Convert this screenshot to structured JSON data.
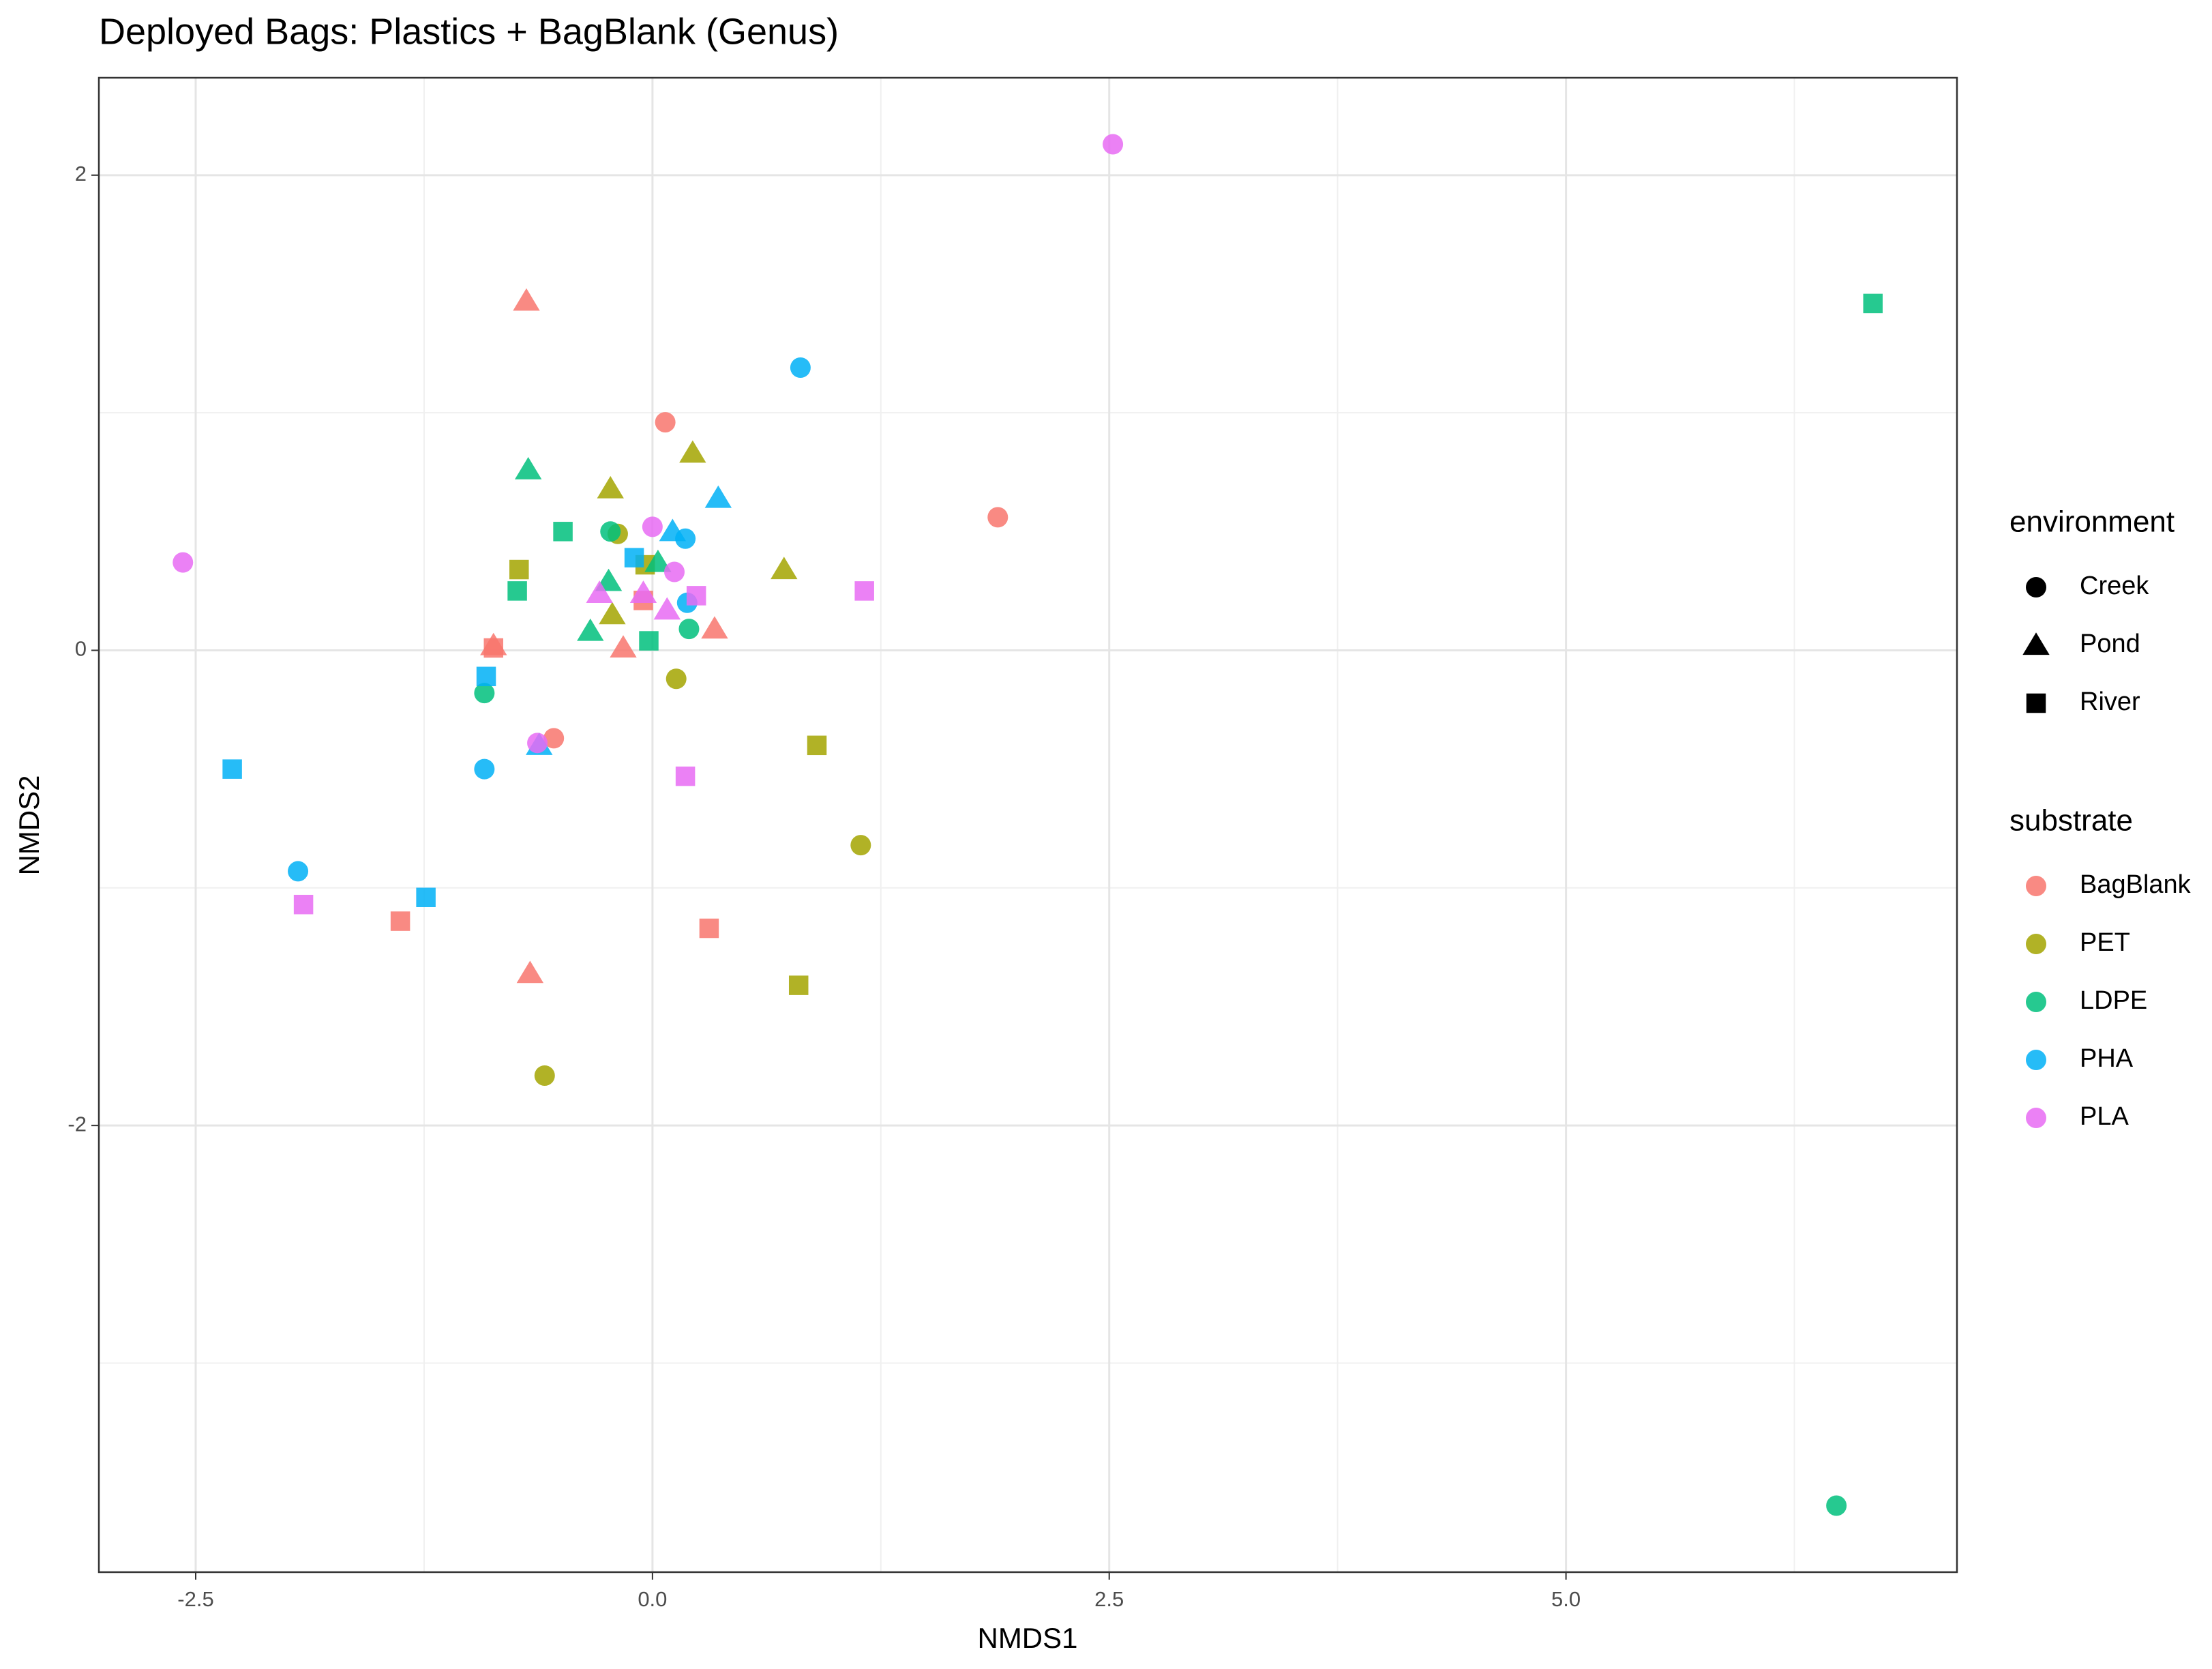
{
  "chart_data": {
    "type": "scatter",
    "title": "Deployed Bags: Plastics + BagBlank (Genus)",
    "x_label": "NMDS1",
    "y_label": "NMDS2",
    "xlim": [
      -3.03,
      7.14
    ],
    "ylim": [
      -3.88,
      2.41
    ],
    "xticks": [
      -2.5,
      {
        "value": 0,
        "label": "0.0"
      },
      2.5,
      {
        "value": 5,
        "label": "5.0"
      }
    ],
    "yticks": [
      -2,
      0,
      2
    ],
    "grid": true,
    "legend": "right",
    "environment_title": "environment",
    "substrate_title": "substrate",
    "environments": [
      {
        "name": "Creek",
        "shape": "circle"
      },
      {
        "name": "Pond",
        "shape": "triangle"
      },
      {
        "name": "River",
        "shape": "square"
      }
    ],
    "series": [
      {
        "name": "BagBlank",
        "color": "#F8766D",
        "x": [
          0.07,
          1.89,
          -0.54,
          -0.69,
          -0.87,
          -0.16,
          0.34,
          -0.67,
          -0.87,
          -0.05,
          -1.38,
          0.31
        ],
        "y": [
          0.96,
          0.56,
          -0.37,
          1.47,
          0.02,
          0.01,
          0.09,
          -1.36,
          0.01,
          0.21,
          -1.14,
          -1.17
        ],
        "environment": [
          "Creek",
          "Creek",
          "Creek",
          "Pond",
          "Pond",
          "Pond",
          "Pond",
          "Pond",
          "River",
          "River",
          "River",
          "River"
        ]
      },
      {
        "name": "PET",
        "color": "#A3A500",
        "x": [
          -0.19,
          0.13,
          1.14,
          -0.59,
          -0.23,
          0.22,
          -0.22,
          0.72,
          -0.73,
          0.9,
          0.8,
          -0.04
        ],
        "y": [
          0.49,
          -0.12,
          -0.82,
          -1.79,
          0.68,
          0.83,
          0.15,
          0.34,
          0.34,
          -0.4,
          -1.41,
          0.36
        ],
        "environment": [
          "Creek",
          "Creek",
          "Creek",
          "Creek",
          "Pond",
          "Pond",
          "Pond",
          "Pond",
          "River",
          "River",
          "River",
          "River"
        ]
      },
      {
        "name": "LDPE",
        "color": "#00BF7D",
        "x": [
          -0.23,
          0.2,
          -0.92,
          6.48,
          -0.68,
          -0.24,
          -0.34,
          0.03,
          -0.49,
          -0.74,
          -0.02,
          6.68
        ],
        "y": [
          0.5,
          0.09,
          -0.18,
          -3.6,
          0.76,
          0.29,
          0.08,
          0.37,
          0.5,
          0.25,
          0.04,
          1.46
        ],
        "environment": [
          "Creek",
          "Creek",
          "Creek",
          "Creek",
          "Pond",
          "Pond",
          "Pond",
          "Pond",
          "River",
          "River",
          "River",
          "River"
        ]
      },
      {
        "name": "PHA",
        "color": "#00B0F6",
        "x": [
          0.81,
          0.18,
          0.19,
          -0.92,
          -1.94,
          0.36,
          0.11,
          -0.62,
          -0.1,
          -0.91,
          -2.3,
          -1.24
        ],
        "y": [
          1.19,
          0.47,
          0.2,
          -0.5,
          -0.93,
          0.64,
          0.5,
          -0.4,
          0.39,
          -0.11,
          -0.5,
          -1.04
        ],
        "environment": [
          "Creek",
          "Creek",
          "Creek",
          "Creek",
          "Creek",
          "Pond",
          "Pond",
          "Pond",
          "River",
          "River",
          "River",
          "River"
        ]
      },
      {
        "name": "PLA",
        "color": "#E76BF3",
        "x": [
          2.52,
          -2.57,
          0.0,
          0.12,
          -0.63,
          -0.29,
          -0.05,
          0.08,
          0.24,
          1.16,
          0.18,
          -1.91
        ],
        "y": [
          2.13,
          0.37,
          0.52,
          0.33,
          -0.39,
          0.24,
          0.24,
          0.17,
          0.23,
          0.25,
          -0.53,
          -1.07
        ],
        "environment": [
          "Creek",
          "Creek",
          "Creek",
          "Creek",
          "Creek",
          "Pond",
          "Pond",
          "Pond",
          "River",
          "River",
          "River",
          "River"
        ]
      }
    ]
  }
}
